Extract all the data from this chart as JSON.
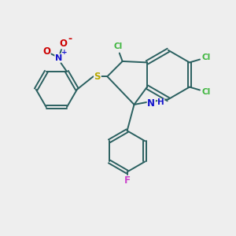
{
  "bg_color": "#eeeeee",
  "atom_colors": {
    "Cl": "#3db53d",
    "N": "#1414cc",
    "O": "#cc0000",
    "S": "#b8a800",
    "F": "#cc44cc",
    "C": "#2a6060",
    "H": "#1414cc"
  },
  "bond_color": "#2a6060",
  "linewidth": 1.4
}
